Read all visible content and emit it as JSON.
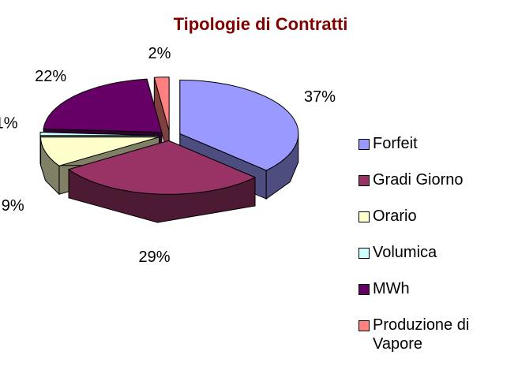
{
  "chart_data": {
    "type": "pie3d",
    "title": "Tipologie di Contratti",
    "categories": [
      "Forfeit",
      "Gradi Giorno",
      "Orario",
      "Volumica",
      "MWh",
      "Produzione di Vapore"
    ],
    "values": [
      37,
      29,
      9,
      1,
      22,
      2
    ],
    "value_labels": [
      "37%",
      "29%",
      "9%",
      "1%",
      "22%",
      "2%"
    ],
    "colors": [
      "#9999ff",
      "#993366",
      "#ffffcc",
      "#ccffff",
      "#660066",
      "#ff8080"
    ],
    "legend": "right"
  }
}
